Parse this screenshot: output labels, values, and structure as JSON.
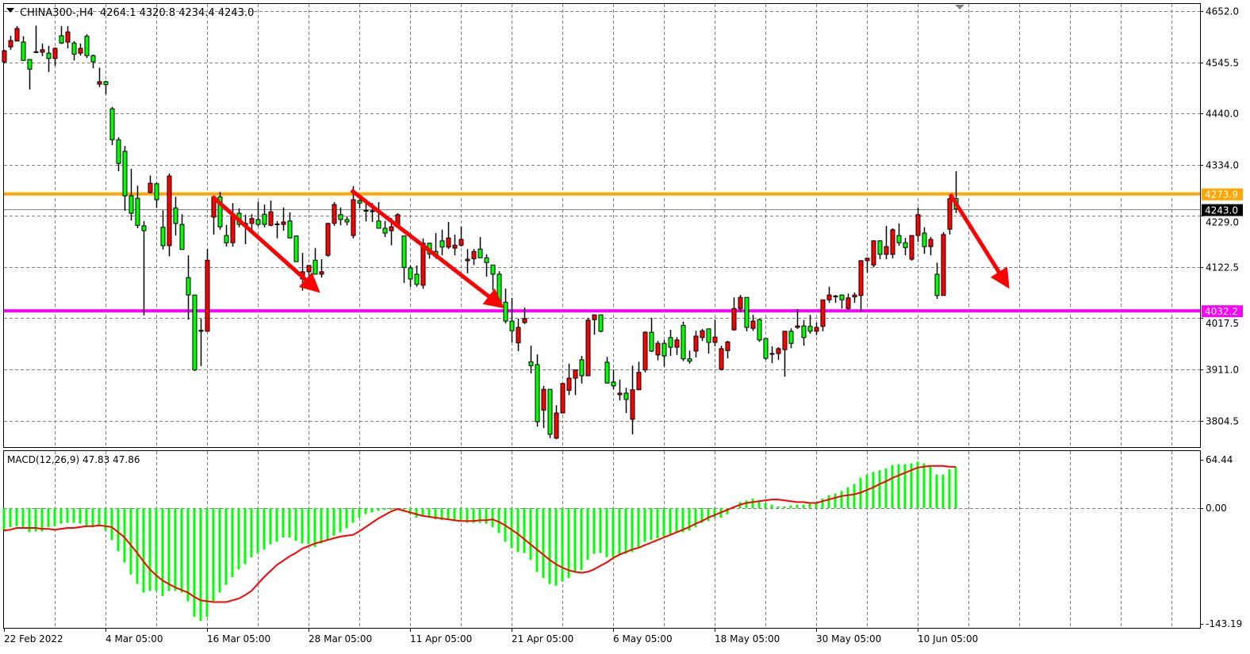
{
  "header": {
    "symbol": "CHINA300-,H4",
    "ohlc_text": "4264.1 4320.8 4234.4 4243.0",
    "macd_label": "MACD(12,26,9) 47.83 47.86"
  },
  "colors": {
    "bull_candle": "#ff0000",
    "bear_candle": "#00ff00",
    "resistance_line": "#ffa500",
    "support_line": "#ff00ff",
    "bid_line": "#808080",
    "macd_histogram": "#00ff00",
    "signal_line": "#ff0000",
    "arrows": "#ff0000"
  },
  "chart_data": [
    {
      "type": "candlestick",
      "title": "CHINA300-,H4",
      "timeframe": "H4",
      "last_ohlc": {
        "open": 4264.1,
        "high": 4320.8,
        "low": 4234.4,
        "close": 4243.0
      },
      "ylim": [
        3750,
        4665
      ],
      "y_ticks": [
        "4652.0",
        "4545.5",
        "4440.0",
        "4334.0",
        "4229.0",
        "4122.5",
        "4017.5",
        "3911.0",
        "3804.5"
      ],
      "x_ticks": [
        {
          "label": "22 Feb 2022",
          "bar": 0
        },
        {
          "label": "4 Mar 05:00",
          "bar": 16
        },
        {
          "label": "16 Mar 05:00",
          "bar": 32
        },
        {
          "label": "28 Mar 05:00",
          "bar": 48
        },
        {
          "label": "11 Apr 05:00",
          "bar": 64
        },
        {
          "label": "21 Apr 05:00",
          "bar": 80
        },
        {
          "label": "6 May 05:00",
          "bar": 96
        },
        {
          "label": "18 May 05:00",
          "bar": 112
        },
        {
          "label": "30 May 05:00",
          "bar": 128
        },
        {
          "label": "10 Jun 05:00",
          "bar": 144
        }
      ],
      "grid": true,
      "horizontal_lines": [
        {
          "price": 4273.9,
          "label": "4273.9",
          "color": "#ffa500"
        },
        {
          "price": 4032.2,
          "label": "4032.2",
          "color": "#ff00ff"
        }
      ],
      "bid": {
        "price": 4243.0,
        "label": "4243.0"
      },
      "ohlc": [
        [
          4547,
          4572,
          4544,
          4570
        ],
        [
          4578,
          4601,
          4572,
          4591
        ],
        [
          4590,
          4621,
          4590,
          4616
        ],
        [
          4588,
          4600,
          4549,
          4550
        ],
        [
          4552,
          4552,
          4490,
          4532
        ],
        [
          4568,
          4622,
          4565,
          4567
        ],
        [
          4567,
          4585,
          4559,
          4572
        ],
        [
          4565,
          4580,
          4526,
          4554
        ],
        [
          4554,
          4577,
          4539,
          4575
        ],
        [
          4601,
          4621,
          4584,
          4586
        ],
        [
          4588,
          4621,
          4575,
          4609
        ],
        [
          4586,
          4590,
          4550,
          4563
        ],
        [
          4565,
          4585,
          4560,
          4575
        ],
        [
          4600,
          4604,
          4555,
          4560
        ],
        [
          4560,
          4562,
          4534,
          4547
        ],
        [
          4501,
          4535,
          4495,
          4506
        ],
        [
          4506,
          4508,
          4480,
          4500
        ],
        [
          4450,
          4454,
          4375,
          4386
        ],
        [
          4386,
          4391,
          4321,
          4337
        ],
        [
          4362,
          4373,
          4239,
          4270
        ],
        [
          4270,
          4326,
          4219,
          4234
        ],
        [
          4265,
          4291,
          4203,
          4209
        ],
        [
          4208,
          4218,
          4023,
          4198
        ],
        [
          4277,
          4312,
          4275,
          4296
        ],
        [
          4295,
          4297,
          4245,
          4262
        ],
        [
          4205,
          4240,
          4159,
          4167
        ],
        [
          4167,
          4316,
          4145,
          4311
        ],
        [
          4245,
          4268,
          4188,
          4213
        ],
        [
          4211,
          4232,
          4159,
          4159
        ],
        [
          4101,
          4147,
          4014,
          4065
        ],
        [
          4065,
          4065,
          3908,
          3910
        ],
        [
          3992,
          4016,
          3918,
          3990
        ],
        [
          3990,
          4160,
          3990,
          4137
        ],
        [
          4226,
          4268,
          4190,
          4268
        ],
        [
          4268,
          4278,
          4200,
          4206
        ],
        [
          4188,
          4210,
          4165,
          4173
        ],
        [
          4173,
          4255,
          4165,
          4231
        ],
        [
          4234,
          4244,
          4205,
          4211
        ],
        [
          4209,
          4231,
          4170,
          4213
        ],
        [
          4213,
          4232,
          4195,
          4223
        ],
        [
          4221,
          4258,
          4207,
          4211
        ],
        [
          4232,
          4252,
          4205,
          4211
        ],
        [
          4209,
          4260,
          4207,
          4237
        ],
        [
          4212,
          4218,
          4182,
          4211
        ],
        [
          4211,
          4246,
          4198,
          4216
        ],
        [
          4218,
          4236,
          4183,
          4183
        ],
        [
          4187,
          4188,
          4134,
          4134
        ],
        [
          4098,
          4152,
          4074,
          4113
        ],
        [
          4113,
          4126,
          4103,
          4126
        ],
        [
          4137,
          4162,
          4108,
          4108
        ],
        [
          4108,
          4139,
          4101,
          4113
        ],
        [
          4147,
          4214,
          4144,
          4213
        ],
        [
          4213,
          4257,
          4208,
          4252
        ],
        [
          4231,
          4246,
          4209,
          4221
        ],
        [
          4221,
          4228,
          4209,
          4216
        ],
        [
          4188,
          4290,
          4182,
          4262
        ],
        [
          4260,
          4265,
          4244,
          4255
        ],
        [
          4240,
          4255,
          4217,
          4239
        ],
        [
          4239,
          4255,
          4216,
          4238
        ],
        [
          4218,
          4257,
          4203,
          4203
        ],
        [
          4203,
          4218,
          4185,
          4193
        ],
        [
          4198,
          4224,
          4168,
          4206
        ],
        [
          4206,
          4234,
          4206,
          4231
        ],
        [
          4187,
          4187,
          4090,
          4122
        ],
        [
          4121,
          4126,
          4082,
          4098
        ],
        [
          4108,
          4126,
          4082,
          4087
        ],
        [
          4085,
          4182,
          4078,
          4172
        ],
        [
          4172,
          4173,
          4140,
          4150
        ],
        [
          4155,
          4193,
          4140,
          4145
        ],
        [
          4177,
          4200,
          4147,
          4164
        ],
        [
          4164,
          4216,
          4160,
          4183
        ],
        [
          4162,
          4190,
          4147,
          4168
        ],
        [
          4168,
          4206,
          4165,
          4180
        ],
        [
          4136,
          4160,
          4110,
          4139
        ],
        [
          4140,
          4160,
          4127,
          4155
        ],
        [
          4160,
          4185,
          4142,
          4142
        ],
        [
          4142,
          4149,
          4103,
          4132
        ],
        [
          4127,
          4127,
          4075,
          4108
        ],
        [
          4108,
          4114,
          4050,
          4050
        ],
        [
          4050,
          4078,
          4006,
          4011
        ],
        [
          4011,
          4059,
          3967,
          3991
        ],
        [
          3966,
          4016,
          3949,
          3998
        ],
        [
          4008,
          4039,
          4005,
          4016
        ],
        [
          3927,
          3960,
          3903,
          3919
        ],
        [
          3921,
          3942,
          3793,
          3803
        ],
        [
          3827,
          3877,
          3790,
          3870
        ],
        [
          3870,
          3870,
          3769,
          3777
        ],
        [
          3769,
          3837,
          3767,
          3821
        ],
        [
          3821,
          3882,
          3821,
          3882
        ],
        [
          3868,
          3923,
          3858,
          3893
        ],
        [
          3893,
          3911,
          3858,
          3910
        ],
        [
          3931,
          3939,
          3882,
          3898
        ],
        [
          3898,
          4018,
          3898,
          4013
        ],
        [
          4014,
          4024,
          3983,
          4024
        ],
        [
          4024,
          4024,
          3988,
          3990
        ],
        [
          3926,
          3937,
          3882,
          3883
        ],
        [
          3885,
          3911,
          3870,
          3877
        ],
        [
          3859,
          3890,
          3847,
          3862
        ],
        [
          3862,
          3873,
          3821,
          3849
        ],
        [
          3808,
          3919,
          3777,
          3869
        ],
        [
          3869,
          3927,
          3869,
          3905
        ],
        [
          3910,
          3990,
          3905,
          3988
        ],
        [
          3988,
          4018,
          3947,
          3949
        ],
        [
          3941,
          3970,
          3930,
          3965
        ],
        [
          3965,
          3972,
          3917,
          3939
        ],
        [
          3977,
          3993,
          3939,
          3957
        ],
        [
          3957,
          3978,
          3941,
          3972
        ],
        [
          4002,
          4010,
          3928,
          3933
        ],
        [
          3933,
          3950,
          3923,
          3928
        ],
        [
          3949,
          3991,
          3936,
          3980
        ],
        [
          3977,
          3995,
          3970,
          3991
        ],
        [
          3995,
          3995,
          3944,
          3967
        ],
        [
          3967,
          4014,
          3959,
          3978
        ],
        [
          3911,
          3960,
          3909,
          3954
        ],
        [
          3950,
          3970,
          3934,
          3968
        ],
        [
          3993,
          4060,
          3991,
          4037
        ],
        [
          4037,
          4065,
          4030,
          4060
        ],
        [
          4060,
          4060,
          3990,
          3998
        ],
        [
          3996,
          4024,
          3991,
          4011
        ],
        [
          4014,
          4016,
          3968,
          3972
        ],
        [
          3975,
          3975,
          3931,
          3934
        ],
        [
          3944,
          3959,
          3924,
          3943
        ],
        [
          3944,
          3957,
          3931,
          3954
        ],
        [
          3952,
          3990,
          3896,
          3990
        ],
        [
          3990,
          3996,
          3955,
          3965
        ],
        [
          3998,
          4036,
          3995,
          4001
        ],
        [
          4001,
          4013,
          3960,
          3977
        ],
        [
          4000,
          4024,
          3985,
          3990
        ],
        [
          3990,
          4008,
          3982,
          3998
        ],
        [
          4000,
          4055,
          3990,
          4055
        ],
        [
          4055,
          4082,
          4049,
          4065
        ],
        [
          4063,
          4065,
          4049,
          4063
        ],
        [
          4065,
          4066,
          4037,
          4055
        ],
        [
          4037,
          4068,
          4034,
          4059
        ],
        [
          4061,
          4070,
          4049,
          4065
        ],
        [
          4064,
          4136,
          4031,
          4136
        ],
        [
          4136,
          4142,
          4111,
          4141
        ],
        [
          4127,
          4178,
          4122,
          4177
        ],
        [
          4177,
          4178,
          4139,
          4149
        ],
        [
          4149,
          4208,
          4139,
          4165
        ],
        [
          4149,
          4203,
          4141,
          4200
        ],
        [
          4188,
          4213,
          4167,
          4173
        ],
        [
          4173,
          4183,
          4147,
          4163
        ],
        [
          4139,
          4188,
          4136,
          4188
        ],
        [
          4188,
          4246,
          4175,
          4231
        ],
        [
          4193,
          4205,
          4150,
          4165
        ],
        [
          4165,
          4185,
          4147,
          4180
        ],
        [
          4108,
          4132,
          4057,
          4064
        ],
        [
          4064,
          4195,
          4064,
          4190
        ],
        [
          4201,
          4268,
          4190,
          4264
        ],
        [
          4264.1,
          4320.8,
          4234.4,
          4243.0
        ]
      ]
    },
    {
      "type": "bar",
      "title": "MACD(12,26,9)",
      "params": [
        12,
        26,
        9
      ],
      "last_macd": 47.83,
      "last_signal": 47.86,
      "ylim": [
        -143.19,
        64.44
      ],
      "y_ticks": [
        "64.44",
        "0.00",
        "-143.19"
      ],
      "histogram": [
        -25,
        -22,
        -21,
        -22,
        -28,
        -27,
        -27,
        -22,
        -21,
        -18,
        -17,
        -17,
        -18,
        -22,
        -22,
        -20,
        -26,
        -37,
        -50,
        -63,
        -77,
        -88,
        -98,
        -96,
        -96,
        -102,
        -96,
        -96,
        -98,
        -108,
        -126,
        -131,
        -126,
        -108,
        -98,
        -89,
        -80,
        -71,
        -65,
        -57,
        -52,
        -48,
        -42,
        -39,
        -34,
        -34,
        -38,
        -41,
        -42,
        -45,
        -41,
        -37,
        -32,
        -28,
        -23,
        -17,
        -11,
        -7,
        -5,
        -3,
        -2,
        -2,
        -1,
        -4,
        -7,
        -11,
        -9,
        -11,
        -13,
        -14,
        -13,
        -14,
        -14,
        -17,
        -17,
        -17,
        -18,
        -22,
        -29,
        -39,
        -46,
        -51,
        -52,
        -60,
        -74,
        -81,
        -88,
        -90,
        -85,
        -81,
        -75,
        -72,
        -60,
        -53,
        -52,
        -57,
        -57,
        -55,
        -53,
        -51,
        -46,
        -39,
        -37,
        -35,
        -33,
        -30,
        -28,
        -28,
        -26,
        -22,
        -17,
        -15,
        -11,
        -11,
        -7,
        2,
        7,
        9,
        11,
        9,
        6,
        4,
        2,
        2,
        3,
        4,
        4,
        5,
        6,
        11,
        15,
        17,
        20,
        24,
        28,
        35,
        39,
        42,
        44,
        46,
        50,
        51,
        51,
        52,
        54,
        52,
        48,
        39,
        39,
        45,
        47.83
      ],
      "signal": [
        -26,
        -25,
        -23,
        -23,
        -23,
        -23,
        -24,
        -24,
        -25,
        -24,
        -23,
        -23,
        -22,
        -21,
        -21,
        -20,
        -21,
        -22,
        -28,
        -34,
        -43,
        -52,
        -62,
        -71,
        -78,
        -84,
        -88,
        -92,
        -95,
        -98,
        -103,
        -107,
        -108,
        -109,
        -109,
        -109,
        -107,
        -105,
        -101,
        -96,
        -88,
        -80,
        -73,
        -66,
        -61,
        -56,
        -52,
        -47,
        -44,
        -41,
        -39,
        -37,
        -35,
        -33,
        -32,
        -31,
        -27,
        -22,
        -17,
        -12,
        -8,
        -4,
        -1,
        -3,
        -5,
        -7,
        -9,
        -10,
        -11,
        -12,
        -13,
        -14,
        -15,
        -15,
        -15,
        -14,
        -14,
        -13,
        -16,
        -20,
        -25,
        -30,
        -36,
        -42,
        -48,
        -54,
        -60,
        -65,
        -69,
        -72,
        -74,
        -75,
        -74,
        -71,
        -67,
        -63,
        -58,
        -54,
        -51,
        -48,
        -46,
        -43,
        -40,
        -37,
        -34,
        -31,
        -28,
        -25,
        -22,
        -18,
        -15,
        -11,
        -8,
        -5,
        -2,
        1,
        4,
        6,
        7,
        8,
        9,
        10,
        10,
        9,
        8,
        7,
        7,
        6,
        6,
        8,
        10,
        12,
        14,
        15,
        16,
        18,
        21,
        24,
        28,
        31,
        35,
        38,
        41,
        44,
        47,
        48,
        49,
        49,
        49,
        48,
        47.86
      ]
    }
  ]
}
